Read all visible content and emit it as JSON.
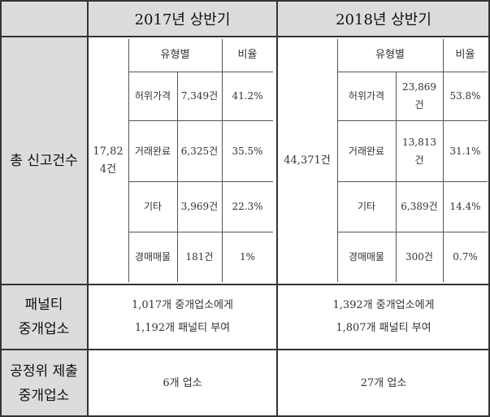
{
  "header": {
    "col2017": "2017년 상반기",
    "col2018": "2018년 상반기"
  },
  "rows": {
    "total_label": "총 신고건수",
    "penalty_label_1": "패널티",
    "penalty_label_2": "중개업소",
    "ftc_label_1": "공정위 제출",
    "ftc_label_2": "중개업소"
  },
  "y2017": {
    "total_1": "17,82",
    "total_2": "4건",
    "col_type": "유형별",
    "col_ratio": "비율",
    "items": [
      {
        "type": "허위가격",
        "count": "7,349건",
        "ratio": "41.2%"
      },
      {
        "type": "거래완료",
        "count": "6,325건",
        "ratio": "35.5%"
      },
      {
        "type": "기타",
        "count": "3,969건",
        "ratio": "22.3%"
      },
      {
        "type": "경매매물",
        "count": "181건",
        "ratio": "1%"
      }
    ],
    "penalty_1": "1,017개 중개업소에게",
    "penalty_2": "1,192개 패널티 부여",
    "ftc": "6개 업소"
  },
  "y2018": {
    "total": "44,371건",
    "col_type": "유형별",
    "col_ratio": "비율",
    "items": [
      {
        "type": "허위가격",
        "count_1": "23,869",
        "count_2": "건",
        "ratio": "53.8%"
      },
      {
        "type": "거래완료",
        "count_1": "13,813",
        "count_2": "건",
        "ratio": "31.1%"
      },
      {
        "type": "기타",
        "count_1": "6,389건",
        "count_2": "",
        "ratio": "14.4%"
      },
      {
        "type": "경매매물",
        "count_1": "300건",
        "count_2": "",
        "ratio": "0.7%"
      }
    ],
    "penalty_1": "1,392개 중개업소에게",
    "penalty_2": "1,807개 패널티 부여",
    "ftc": "27개 업소"
  }
}
